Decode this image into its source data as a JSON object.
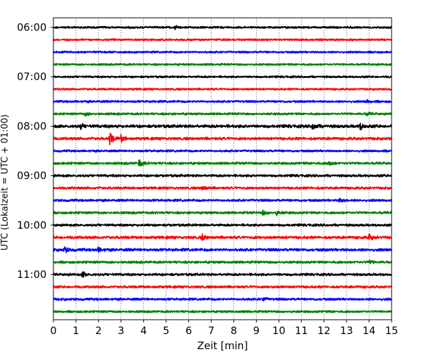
{
  "chart_data": {
    "type": "line",
    "title": "",
    "xlabel": "Zeit  [min]",
    "ylabel": "UTC (Lokalzeit = UTC + 01:00)",
    "xlim": [
      0,
      15
    ],
    "x_ticks": [
      "0",
      "1",
      "2",
      "3",
      "4",
      "5",
      "6",
      "7",
      "8",
      "9",
      "10",
      "11",
      "12",
      "13",
      "14",
      "15"
    ],
    "y_tick_labels": [
      "06:00",
      "07:00",
      "08:00",
      "09:00",
      "10:00",
      "11:00"
    ],
    "vertical_grid": true,
    "trace_interval_minutes": 15,
    "color_cycle": [
      "#000000",
      "#ff0000",
      "#0000ff",
      "#008000"
    ],
    "traces": [
      {
        "start": "06:00",
        "amplitude": 0.18,
        "events": [
          {
            "t": 5.4,
            "amp": 0.35
          }
        ]
      },
      {
        "start": "06:15",
        "amplitude": 0.18,
        "events": []
      },
      {
        "start": "06:30",
        "amplitude": 0.18,
        "events": []
      },
      {
        "start": "06:45",
        "amplitude": 0.18,
        "events": []
      },
      {
        "start": "07:00",
        "amplitude": 0.18,
        "events": []
      },
      {
        "start": "07:15",
        "amplitude": 0.18,
        "events": []
      },
      {
        "start": "07:30",
        "amplitude": 0.2,
        "events": [
          {
            "t": 13.9,
            "amp": 0.3
          }
        ]
      },
      {
        "start": "07:45",
        "amplitude": 0.2,
        "events": [
          {
            "t": 1.4,
            "amp": 0.4
          },
          {
            "t": 13.9,
            "amp": 0.35
          }
        ]
      },
      {
        "start": "08:00",
        "amplitude": 0.28,
        "events": [
          {
            "t": 1.2,
            "amp": 0.45
          },
          {
            "t": 11.5,
            "amp": 0.7
          },
          {
            "t": 13.6,
            "amp": 0.6
          }
        ]
      },
      {
        "start": "08:15",
        "amplitude": 0.25,
        "events": [
          {
            "t": 2.5,
            "amp": 1.2
          },
          {
            "t": 3.0,
            "amp": 0.6
          }
        ]
      },
      {
        "start": "08:30",
        "amplitude": 0.2,
        "events": []
      },
      {
        "start": "08:45",
        "amplitude": 0.22,
        "events": [
          {
            "t": 3.8,
            "amp": 0.8
          },
          {
            "t": 12.2,
            "amp": 0.5
          }
        ]
      },
      {
        "start": "09:00",
        "amplitude": 0.22,
        "events": []
      },
      {
        "start": "09:15",
        "amplitude": 0.22,
        "events": [
          {
            "t": 6.6,
            "amp": 0.5
          }
        ]
      },
      {
        "start": "09:30",
        "amplitude": 0.22,
        "events": [
          {
            "t": 12.7,
            "amp": 0.5
          }
        ]
      },
      {
        "start": "09:45",
        "amplitude": 0.22,
        "events": [
          {
            "t": 9.3,
            "amp": 0.5
          },
          {
            "t": 9.9,
            "amp": 0.45
          }
        ]
      },
      {
        "start": "10:00",
        "amplitude": 0.22,
        "events": []
      },
      {
        "start": "10:15",
        "amplitude": 0.25,
        "events": [
          {
            "t": 6.6,
            "amp": 0.45
          },
          {
            "t": 14.0,
            "amp": 0.5
          }
        ]
      },
      {
        "start": "10:30",
        "amplitude": 0.26,
        "events": [
          {
            "t": 0.5,
            "amp": 0.5
          },
          {
            "t": 2.0,
            "amp": 0.45
          }
        ]
      },
      {
        "start": "10:45",
        "amplitude": 0.22,
        "events": [
          {
            "t": 14.0,
            "amp": 0.35
          }
        ]
      },
      {
        "start": "11:00",
        "amplitude": 0.22,
        "events": [
          {
            "t": 1.3,
            "amp": 0.6
          }
        ]
      },
      {
        "start": "11:15",
        "amplitude": 0.22,
        "events": []
      },
      {
        "start": "11:30",
        "amplitude": 0.22,
        "events": [
          {
            "t": 9.3,
            "amp": 0.4
          }
        ]
      },
      {
        "start": "11:45",
        "amplitude": 0.2,
        "events": []
      }
    ]
  }
}
